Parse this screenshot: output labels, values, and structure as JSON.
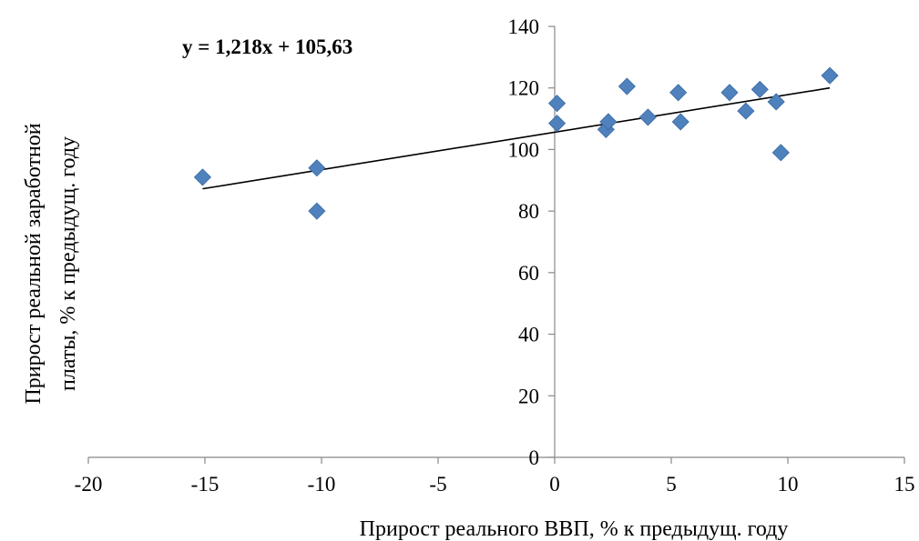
{
  "chart_data": {
    "type": "scatter",
    "x_axis_label": "Прирост реального ВВП, % к предыдущ. году",
    "y_axis_label_lines": [
      "Прирост реальной заработной",
      "платы, % к предыдущ. году"
    ],
    "trendline_equation": "y = 1,218x + 105,63",
    "trendline": {
      "slope": 1.218,
      "intercept": 105.63,
      "x_range": [
        -15.1,
        11.8
      ]
    },
    "xlim": [
      -20,
      15
    ],
    "ylim": [
      0,
      140
    ],
    "x_ticks": [
      -20,
      -15,
      -10,
      -5,
      0,
      5,
      10,
      15
    ],
    "x_tick_labels": [
      "-20",
      "-15",
      "-10",
      "-5",
      "0",
      "5",
      "10",
      "15"
    ],
    "y_ticks": [
      0,
      20,
      40,
      60,
      80,
      100,
      120,
      140
    ],
    "y_tick_labels": [
      "0",
      "20",
      "40",
      "60",
      "80",
      "100",
      "120",
      "140"
    ],
    "grid": false,
    "legend": "none",
    "marker": "diamond",
    "marker_color": "#4f81bd",
    "trendline_color": "#000000",
    "points": [
      {
        "x": -15.1,
        "y": 91
      },
      {
        "x": -10.2,
        "y": 94
      },
      {
        "x": -10.2,
        "y": 80
      },
      {
        "x": 0.1,
        "y": 115
      },
      {
        "x": 0.1,
        "y": 108.5
      },
      {
        "x": 2.2,
        "y": 106.5
      },
      {
        "x": 2.3,
        "y": 109
      },
      {
        "x": 3.1,
        "y": 120.5
      },
      {
        "x": 4.0,
        "y": 110.5
      },
      {
        "x": 5.3,
        "y": 118.5
      },
      {
        "x": 5.4,
        "y": 109
      },
      {
        "x": 7.5,
        "y": 118.5
      },
      {
        "x": 8.2,
        "y": 112.5
      },
      {
        "x": 8.8,
        "y": 119.5
      },
      {
        "x": 9.5,
        "y": 115.5
      },
      {
        "x": 9.7,
        "y": 99
      },
      {
        "x": 11.8,
        "y": 124
      }
    ]
  }
}
